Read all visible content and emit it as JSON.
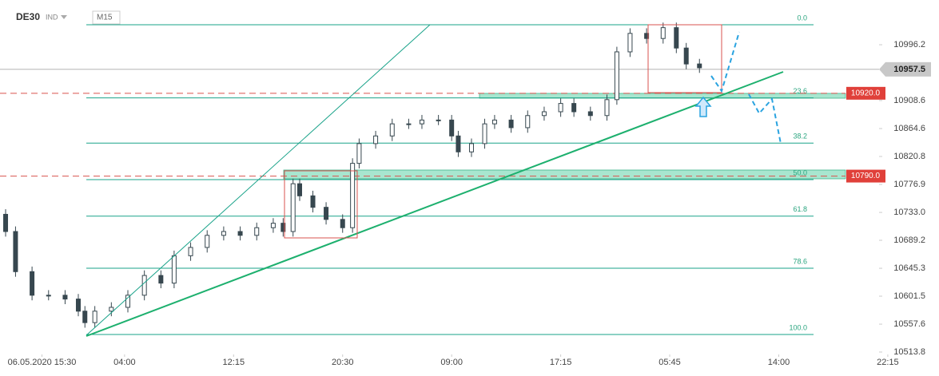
{
  "header": {
    "symbol": "DE30",
    "market": "IND",
    "timeframe": "M15"
  },
  "chart_data": {
    "type": "candlestick",
    "color": "#37474f",
    "x": [
      1,
      4,
      9,
      14,
      19,
      23,
      25,
      28,
      33,
      38,
      43,
      48,
      52,
      57,
      62,
      67,
      72,
      77,
      82,
      85,
      88,
      90,
      94,
      98,
      103,
      106,
      108,
      113,
      118,
      123,
      127,
      132,
      136,
      138,
      142,
      146,
      149,
      154,
      159,
      164,
      169,
      173,
      178,
      183,
      186,
      190,
      195,
      200,
      204,
      207,
      211
    ],
    "open": [
      10730,
      10703,
      10640,
      10603,
      10603,
      10597,
      10578,
      10560,
      10578,
      10584,
      10603,
      10634,
      10622,
      10665,
      10678,
      10697,
      10703,
      10697,
      10709,
      10716,
      10703,
      10778,
      10759,
      10741,
      10722,
      10709,
      10810,
      10841,
      10853,
      10872,
      10872,
      10878,
      10878,
      10853,
      10828,
      10841,
      10872,
      10878,
      10866,
      10885,
      10891,
      10904,
      10891,
      10885,
      10910,
      10985,
      11014,
      11006,
      11023,
      10991,
      10966
    ],
    "high": [
      10738,
      10711,
      10648,
      10611,
      10611,
      10605,
      10586,
      10586,
      10592,
      10611,
      10642,
      10642,
      10673,
      10686,
      10705,
      10711,
      10711,
      10717,
      10724,
      10724,
      10786,
      10786,
      10767,
      10749,
      10730,
      10818,
      10849,
      10861,
      10880,
      10880,
      10886,
      10886,
      10886,
      10861,
      10849,
      10880,
      10886,
      10886,
      10893,
      10899,
      10912,
      10912,
      10899,
      10918,
      10993,
      11022,
      11022,
      11031,
      11031,
      10999,
      10974
    ],
    "low": [
      10695,
      10632,
      10595,
      10595,
      10589,
      10570,
      10552,
      10552,
      10570,
      10576,
      10595,
      10614,
      10614,
      10657,
      10670,
      10689,
      10689,
      10689,
      10701,
      10695,
      10695,
      10751,
      10733,
      10714,
      10701,
      10701,
      10802,
      10833,
      10845,
      10864,
      10864,
      10870,
      10845,
      10820,
      10820,
      10833,
      10864,
      10858,
      10858,
      10877,
      10883,
      10883,
      10877,
      10877,
      10902,
      10977,
      10998,
      10998,
      10983,
      10958,
      10952
    ],
    "close": [
      10703,
      10640,
      10603,
      10603,
      10597,
      10578,
      10560,
      10578,
      10584,
      10603,
      10634,
      10622,
      10665,
      10678,
      10697,
      10703,
      10697,
      10709,
      10716,
      10703,
      10778,
      10759,
      10741,
      10722,
      10709,
      10810,
      10841,
      10853,
      10872,
      10872,
      10878,
      10878,
      10853,
      10828,
      10841,
      10872,
      10878,
      10866,
      10885,
      10891,
      10904,
      10891,
      10885,
      10910,
      10985,
      11014,
      11006,
      11023,
      10991,
      10966,
      10960
    ],
    "xlim": [
      -0.7,
      283.5
    ],
    "xticks": [
      {
        "value": 12,
        "label": "06.05.2020 15:30"
      },
      {
        "value": 37,
        "label": "04:00"
      },
      {
        "value": 70,
        "label": "12:15"
      },
      {
        "value": 103,
        "label": "20:30"
      },
      {
        "value": 136,
        "label": "09:00"
      },
      {
        "value": 169,
        "label": "17:15"
      },
      {
        "value": 202,
        "label": "05:45"
      },
      {
        "value": 235,
        "label": "14:00"
      },
      {
        "value": 268,
        "label": "22:15"
      }
    ],
    "ylim": [
      10490,
      11066.4
    ],
    "yticks": [
      10513.8,
      10557.6,
      10601.5,
      10645.3,
      10689.2,
      {
        "value": 10733,
        "label": "10733.0"
      },
      10776.9,
      10820.8,
      10864.6,
      10908.6,
      10996.2
    ],
    "current_price": 10957.5,
    "levels": [
      {
        "value": 10920,
        "label": "10920.0"
      },
      {
        "value": 10790,
        "label": "10790.0"
      }
    ],
    "fib_levels": [
      {
        "label": "0.0",
        "price": 11027.5
      },
      {
        "label": "23.6",
        "price": 10912.8
      },
      {
        "label": "38.2",
        "price": 10841.8
      },
      {
        "label": "50.0",
        "price": 10784.5
      },
      {
        "label": "61.8",
        "price": 10727.1
      },
      {
        "label": "78.6",
        "price": 10645.4
      },
      {
        "label": "100.0",
        "price": 10541.4
      }
    ]
  }
}
